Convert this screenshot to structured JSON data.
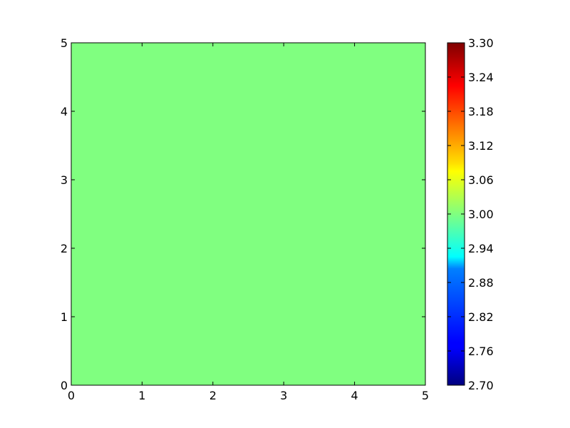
{
  "chart_data": {
    "type": "heatmap",
    "title": "",
    "xlabel": "",
    "ylabel": "",
    "xlim": [
      0,
      5
    ],
    "ylim": [
      0,
      5
    ],
    "x_ticks": [
      "0",
      "1",
      "2",
      "3",
      "4",
      "5"
    ],
    "y_ticks": [
      "0",
      "1",
      "2",
      "3",
      "4",
      "5"
    ],
    "grid": false,
    "values": [
      [
        3.0
      ]
    ],
    "field_color": "#80ff80",
    "colorbar": {
      "colormap": "jet",
      "range": [
        2.7,
        3.3
      ],
      "ticks": [
        "2.70",
        "2.76",
        "2.82",
        "2.88",
        "2.94",
        "3.00",
        "3.06",
        "3.12",
        "3.18",
        "3.24",
        "3.30"
      ]
    }
  }
}
